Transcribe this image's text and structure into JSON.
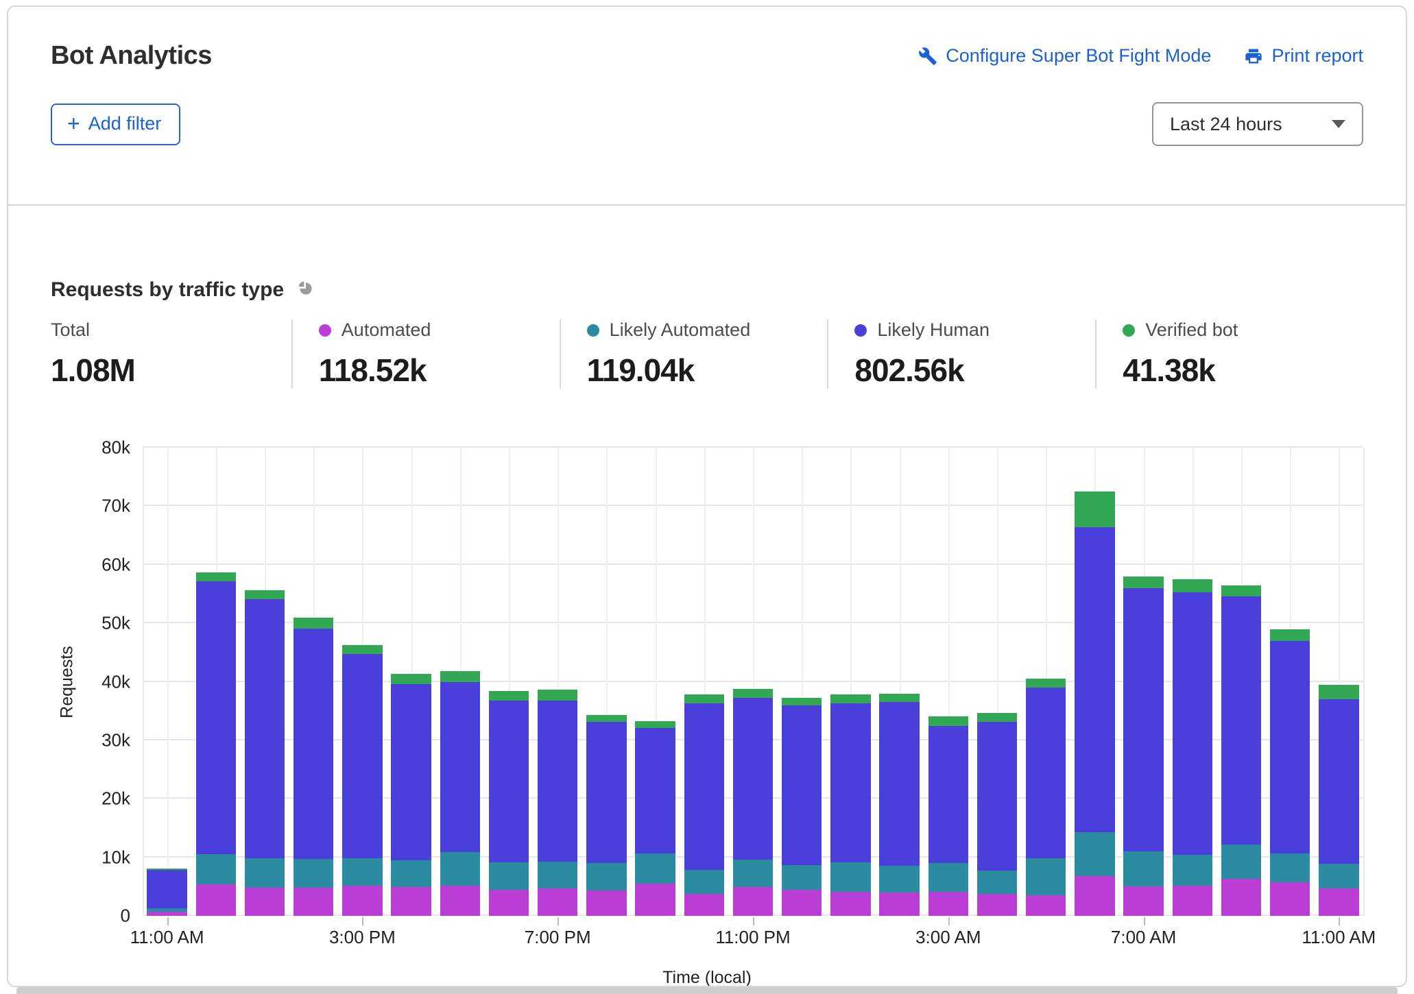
{
  "header": {
    "title": "Bot Analytics",
    "links": [
      {
        "label": "Configure Super Bot Fight Mode",
        "icon": "wrench-icon"
      },
      {
        "label": "Print report",
        "icon": "printer-icon"
      }
    ],
    "add_filter": {
      "label": "Add filter",
      "icon": "plus-icon"
    },
    "time_range_select": {
      "value": "Last 24 hours"
    }
  },
  "panel": {
    "title": "Requests by traffic type",
    "stats": [
      {
        "label": "Total",
        "value": "1.08M",
        "color": null
      },
      {
        "label": "Automated",
        "value": "118.52k",
        "color": "#ba3ed6"
      },
      {
        "label": "Likely Automated",
        "value": "119.04k",
        "color": "#2b8ba1"
      },
      {
        "label": "Likely Human",
        "value": "802.56k",
        "color": "#4a3fdb"
      },
      {
        "label": "Verified bot",
        "value": "41.38k",
        "color": "#32a854"
      }
    ]
  },
  "chart_data": {
    "type": "bar",
    "stacked": true,
    "title": "Requests by traffic type",
    "xlabel": "Time (local)",
    "ylabel": "Requests",
    "unit": "thousands of requests",
    "ylim": [
      0,
      80
    ],
    "ytick_labels": [
      "0",
      "10k",
      "20k",
      "30k",
      "40k",
      "50k",
      "60k",
      "70k",
      "80k"
    ],
    "x_hours": [
      "11:00 AM",
      "12:00 PM",
      "1:00 PM",
      "2:00 PM",
      "3:00 PM",
      "4:00 PM",
      "5:00 PM",
      "6:00 PM",
      "7:00 PM",
      "8:00 PM",
      "9:00 PM",
      "10:00 PM",
      "11:00 PM",
      "12:00 AM",
      "1:00 AM",
      "2:00 AM",
      "3:00 AM",
      "4:00 AM",
      "5:00 AM",
      "6:00 AM",
      "7:00 AM",
      "8:00 AM",
      "9:00 AM",
      "10:00 AM",
      "11:00 AM"
    ],
    "xtick_indices": [
      0,
      4,
      8,
      12,
      16,
      20,
      24
    ],
    "xtick_labels": [
      "11:00 AM",
      "3:00 PM",
      "7:00 PM",
      "11:00 PM",
      "3:00 AM",
      "7:00 AM",
      "11:00 AM"
    ],
    "grid": "horizontal every 10k, vertical hourly",
    "legend_position": "stats row above chart",
    "series": [
      {
        "name": "Automated",
        "color": "#ba3ed6",
        "values": [
          0.7,
          5.4,
          4.8,
          4.8,
          5.2,
          4.9,
          5.1,
          4.4,
          4.7,
          4.3,
          5.5,
          3.7,
          4.9,
          4.4,
          4.1,
          4.0,
          4.1,
          3.8,
          3.5,
          6.8,
          5.0,
          5.1,
          6.3,
          5.7,
          4.7
        ]
      },
      {
        "name": "Likely Automated",
        "color": "#2b8ba1",
        "values": [
          0.6,
          5.1,
          5.0,
          4.9,
          4.6,
          4.6,
          5.8,
          4.7,
          4.6,
          4.7,
          5.2,
          4.2,
          4.7,
          4.3,
          5.0,
          4.6,
          4.9,
          3.9,
          6.3,
          7.5,
          6.0,
          5.3,
          5.9,
          5.0,
          4.2
        ]
      },
      {
        "name": "Likely Human",
        "color": "#4a3fdb",
        "values": [
          6.5,
          46.7,
          44.3,
          39.4,
          34.9,
          30.1,
          29.1,
          27.7,
          27.5,
          24.2,
          21.4,
          28.4,
          27.7,
          27.3,
          27.2,
          28.0,
          23.4,
          25.5,
          29.2,
          52.1,
          45.0,
          44.9,
          42.4,
          36.3,
          28.1
        ]
      },
      {
        "name": "Verified bot",
        "color": "#32a854",
        "values": [
          0.3,
          1.5,
          1.5,
          1.9,
          1.6,
          1.7,
          1.8,
          1.6,
          1.8,
          1.1,
          1.2,
          1.5,
          1.5,
          1.2,
          1.5,
          1.4,
          1.7,
          1.5,
          1.5,
          6.1,
          2.0,
          2.2,
          1.9,
          2.0,
          2.5
        ]
      }
    ]
  }
}
